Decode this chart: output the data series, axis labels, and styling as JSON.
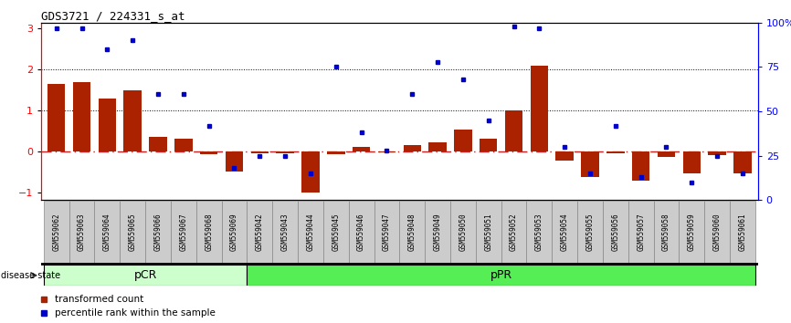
{
  "title": "GDS3721 / 224331_s_at",
  "samples": [
    "GSM559062",
    "GSM559063",
    "GSM559064",
    "GSM559065",
    "GSM559066",
    "GSM559067",
    "GSM559068",
    "GSM559069",
    "GSM559042",
    "GSM559043",
    "GSM559044",
    "GSM559045",
    "GSM559046",
    "GSM559047",
    "GSM559048",
    "GSM559049",
    "GSM559050",
    "GSM559051",
    "GSM559052",
    "GSM559053",
    "GSM559054",
    "GSM559055",
    "GSM559056",
    "GSM559057",
    "GSM559058",
    "GSM559059",
    "GSM559060",
    "GSM559061"
  ],
  "transformed_count": [
    1.65,
    1.7,
    1.3,
    1.5,
    0.35,
    0.3,
    -0.08,
    -0.5,
    -0.06,
    -0.06,
    -1.0,
    -0.07,
    0.1,
    -0.02,
    0.15,
    0.22,
    0.52,
    0.3,
    1.0,
    2.1,
    -0.22,
    -0.62,
    -0.05,
    -0.72,
    -0.15,
    -0.55,
    -0.1,
    -0.55
  ],
  "percentile_rank": [
    97,
    97,
    85,
    90,
    60,
    60,
    42,
    18,
    25,
    25,
    15,
    75,
    38,
    28,
    60,
    78,
    68,
    45,
    98,
    97,
    30,
    15,
    42,
    13,
    30,
    10,
    25,
    15
  ],
  "pCR_count": 8,
  "ylim": [
    -1.2,
    3.15
  ],
  "yticks_left": [
    -1,
    0,
    1,
    2,
    3
  ],
  "yticks_right_pct": [
    0,
    25,
    50,
    75,
    100
  ],
  "right_yticklabels": [
    "0",
    "25",
    "50",
    "75",
    "100%"
  ],
  "bar_color": "#aa2200",
  "dot_color": "#0000cc",
  "hline_zero_color": "#cc2222",
  "pCR_color": "#ccffcc",
  "pPR_color": "#55ee55",
  "label_bg_color": "#cccccc",
  "legend_bar_label": "transformed count",
  "legend_dot_label": "percentile rank within the sample",
  "fig_width": 8.66,
  "fig_height": 3.54,
  "dpi": 100
}
